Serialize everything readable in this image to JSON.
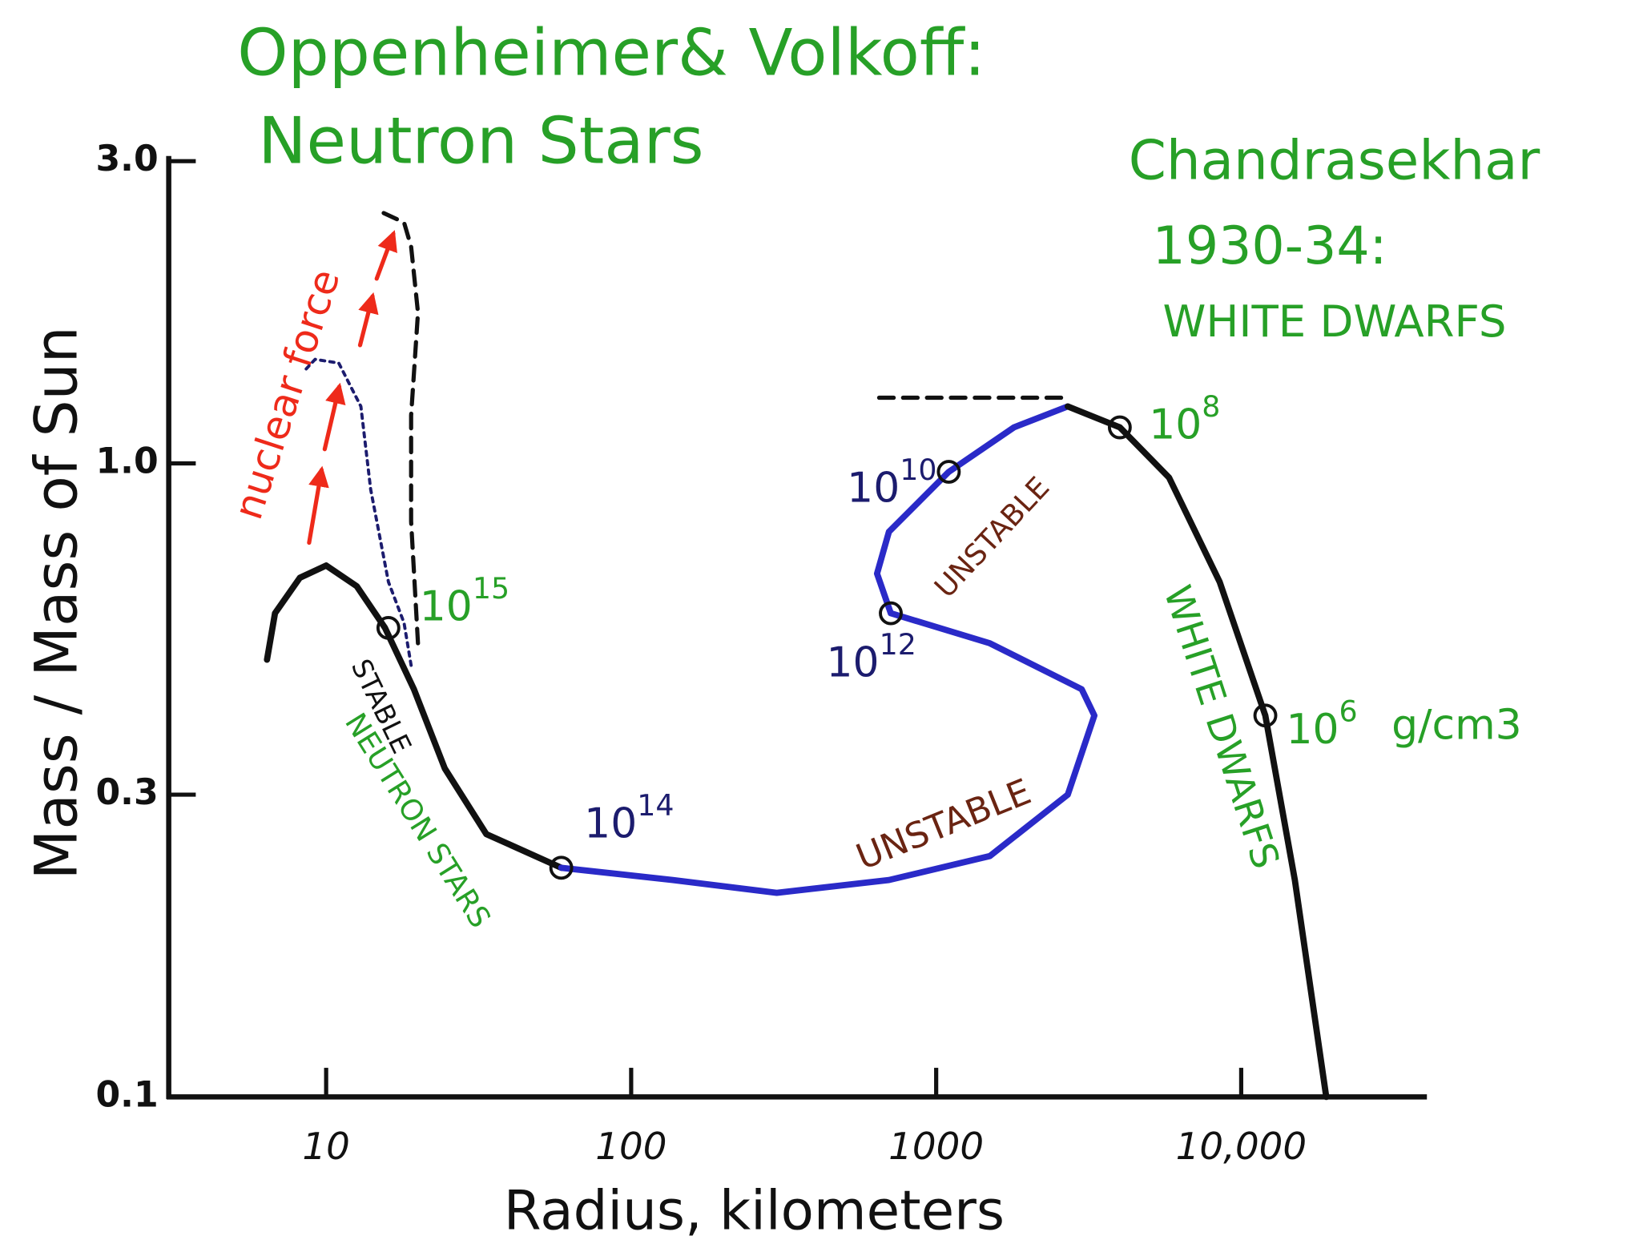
{
  "chart_data": {
    "type": "line",
    "title": [
      "Oppenheimer& Volkoff:",
      "Neutron Stars"
    ],
    "subtitle": [
      "Chandrasekhar",
      "1930-34:",
      "WHITE DWARFS"
    ],
    "x_label": "Radius, kilometers",
    "y_label": "Mass / Mass of Sun",
    "x_scale": "log",
    "y_scale": "log",
    "xlim": [
      3,
      40000
    ],
    "ylim": [
      0.1,
      3
    ],
    "xticks": [
      10,
      100,
      1000,
      {
        "value": 10000,
        "label": "10,000"
      }
    ],
    "yticks": [
      0.1,
      0.3,
      {
        "value": 1,
        "label": "1.0"
      },
      {
        "value": 3,
        "label": "3.0"
      }
    ],
    "grid": false,
    "series": [
      {
        "color": "#111111",
        "style": "solid",
        "x": [
          6.4,
          6.8,
          8.2,
          10,
          12.6,
          15.6,
          19.4,
          24.5,
          33.5,
          59
        ],
        "values": [
          0.49,
          0.58,
          0.66,
          0.69,
          0.64,
          0.55,
          0.44,
          0.33,
          0.26,
          0.23
        ]
      },
      {
        "color": "#2a2ac8",
        "style": "solid",
        "x": [
          59,
          137,
          300,
          700,
          1500,
          2700,
          3300,
          3000,
          1500,
          710,
          640,
          700,
          1100,
          1800,
          2700
        ],
        "values": [
          0.23,
          0.22,
          0.21,
          0.22,
          0.24,
          0.3,
          0.4,
          0.44,
          0.52,
          0.58,
          0.67,
          0.78,
          0.97,
          1.14,
          1.23
        ]
      },
      {
        "color": "#111111",
        "style": "solid",
        "x": [
          2700,
          4000,
          5800,
          8500,
          12000,
          15000,
          19000
        ],
        "values": [
          1.23,
          1.14,
          0.95,
          0.65,
          0.4,
          0.22,
          0.1
        ]
      },
      {
        "color": "#1c1c6e",
        "style": "dotted",
        "x": [
          19,
          18,
          16,
          14,
          13,
          11,
          9.2,
          8.6
        ],
        "values": [
          0.48,
          0.56,
          0.65,
          0.91,
          1.23,
          1.44,
          1.46,
          1.41
        ]
      },
      {
        "color": "#111111",
        "style": "dashed",
        "x": [
          20,
          19,
          19,
          20,
          19,
          18,
          15
        ],
        "values": [
          0.52,
          0.81,
          1.19,
          1.73,
          2.2,
          2.4,
          2.5
        ]
      },
      {
        "color": "#111111",
        "style": "dashed",
        "x": [
          650,
          2700
        ],
        "values": [
          1.27,
          1.27
        ]
      }
    ],
    "markers": {
      "x": [
        16,
        59,
        710,
        1100,
        4000,
        12000
      ],
      "y": [
        0.55,
        0.23,
        0.58,
        0.97,
        1.14,
        0.4
      ],
      "labels": [
        {
          "base": "10",
          "exp": "15"
        },
        {
          "base": "10",
          "exp": "14"
        },
        {
          "base": "10",
          "exp": "12"
        },
        {
          "base": "10",
          "exp": "10"
        },
        {
          "base": "10",
          "exp": "8"
        },
        {
          "base": "10",
          "exp": "6"
        }
      ]
    },
    "annotations": [
      "nuclear force",
      "STABLE",
      "NEUTRON STARS",
      "UNSTABLE",
      "UNSTABLE",
      "WHITE DWARFS",
      "g/cm3"
    ]
  }
}
